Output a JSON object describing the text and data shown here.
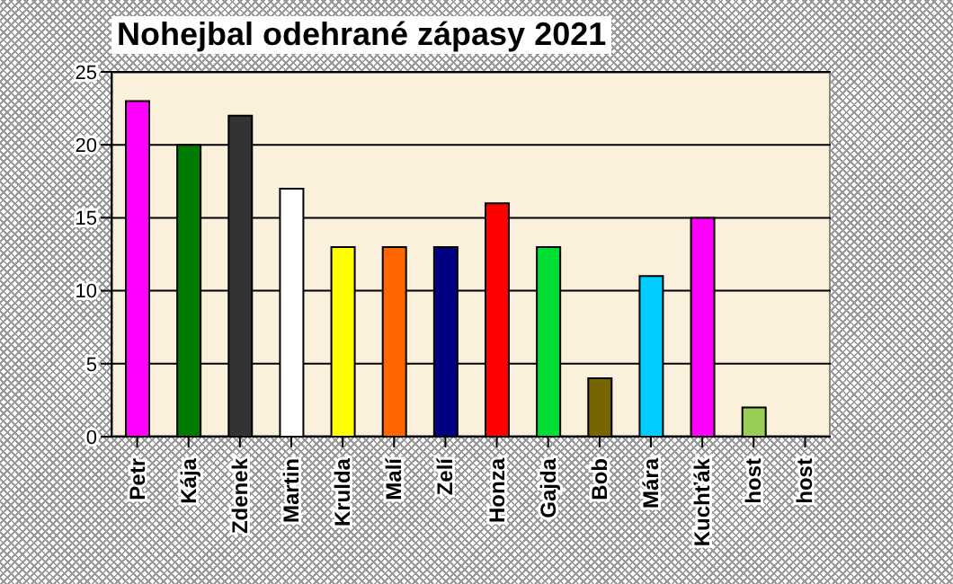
{
  "chart_data": {
    "type": "bar",
    "title": "Nohejbal odehrané zápasy 2021",
    "categories": [
      "Petr",
      "Kája",
      "Zdenek",
      "Martin",
      "Krulda",
      "Malí",
      "Zelí",
      "Honza",
      "Gajda",
      "Bob",
      "Mára",
      "Kuchťák",
      "host",
      "host"
    ],
    "values": [
      23,
      20,
      22,
      17,
      13,
      13,
      13,
      16,
      13,
      4,
      11,
      15,
      2,
      0
    ],
    "colors": [
      "#ff00ff",
      "#007a00",
      "#333333",
      "#ffffff",
      "#ffff00",
      "#ff6600",
      "#000080",
      "#ff0000",
      "#00dd33",
      "#776600",
      "#00ccff",
      "#ff00ff",
      "#99cc55",
      "#cccccc"
    ],
    "ylim": [
      0,
      25
    ],
    "yticks": [
      0,
      5,
      10,
      15,
      20,
      25
    ],
    "grid": "y"
  }
}
